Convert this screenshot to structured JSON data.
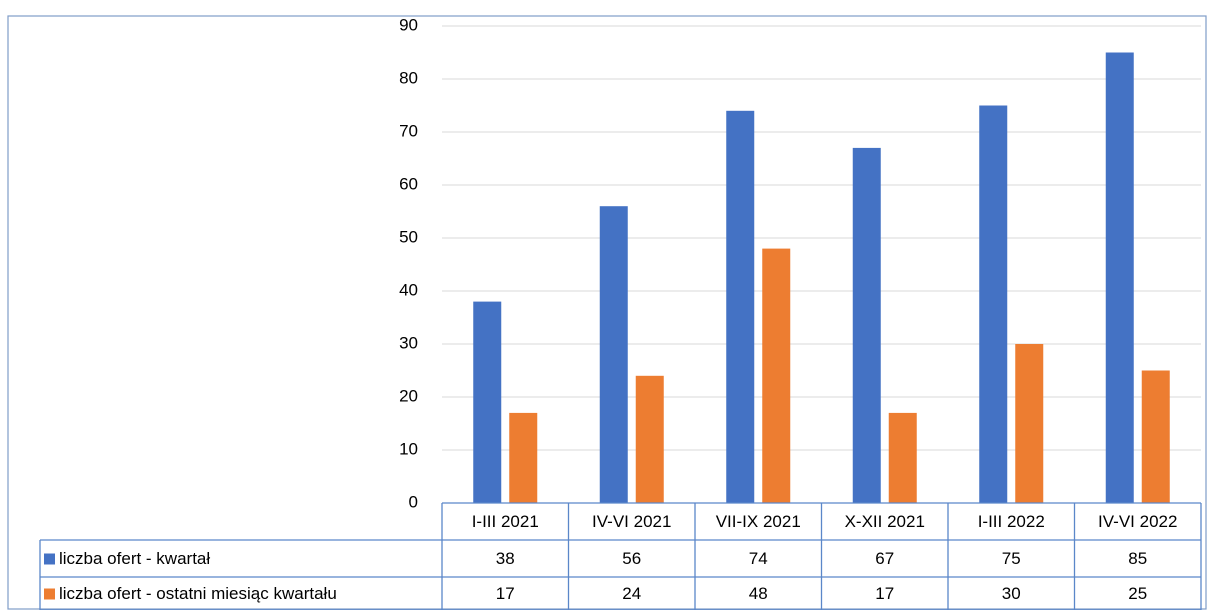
{
  "chart_data": {
    "type": "bar",
    "categories": [
      "I-III 2021",
      "IV-VI 2021",
      "VII-IX 2021",
      "X-XII 2021",
      "I-III 2022",
      "IV-VI 2022"
    ],
    "series": [
      {
        "name": "liczba ofert - kwartał",
        "color": "#4472c4",
        "values": [
          38,
          56,
          74,
          67,
          75,
          85
        ]
      },
      {
        "name": "liczba ofert - ostatni miesiąc kwartału",
        "color": "#ed7d31",
        "values": [
          17,
          24,
          48,
          17,
          30,
          25
        ]
      }
    ],
    "ylim": [
      0,
      90
    ],
    "yticks": [
      0,
      10,
      20,
      30,
      40,
      50,
      60,
      70,
      80,
      90
    ],
    "grid": true,
    "data_table": true
  }
}
